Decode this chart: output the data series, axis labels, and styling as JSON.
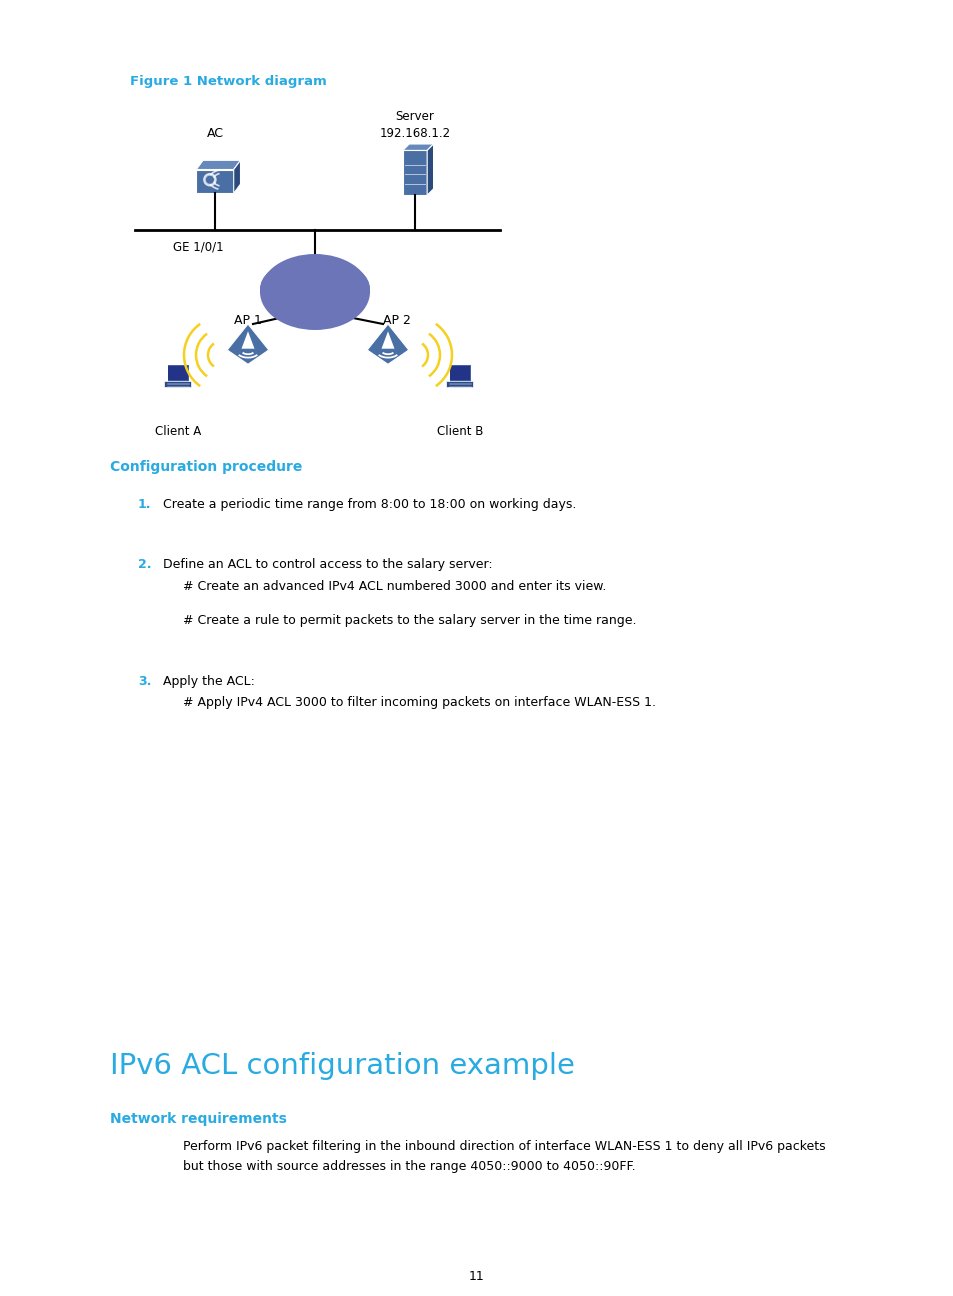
{
  "background_color": "#ffffff",
  "figure_title": "Figure 1 Network diagram",
  "figure_title_color": "#29ABE2",
  "config_title": "Configuration procedure",
  "config_title_color": "#29ABE2",
  "ipv6_title": "IPv6 ACL configuration example",
  "ipv6_title_color": "#29ABE2",
  "network_req_title": "Network requirements",
  "network_req_title_color": "#29ABE2",
  "step1_num": "1.",
  "step1_num_color": "#29ABE2",
  "step1_text": "Create a periodic time range from 8:00 to 18:00 on working days.",
  "step2_num": "2.",
  "step2_num_color": "#29ABE2",
  "step2_text1": "Define an ACL to control access to the salary server:",
  "step2_text2": "# Create an advanced IPv4 ACL numbered 3000 and enter its view.",
  "step2_text3": "# Create a rule to permit packets to the salary server in the time range.",
  "step3_num": "3.",
  "step3_num_color": "#29ABE2",
  "step3_text1": "Apply the ACL:",
  "step3_text2": "# Apply IPv4 ACL 3000 to filter incoming packets on interface WLAN-ESS 1.",
  "network_req_text1": "Perform IPv6 packet filtering in the inbound direction of interface WLAN-ESS 1 to deny all IPv6 packets",
  "network_req_text2": "but those with source addresses in the range 4050::9000 to 4050::90FF.",
  "page_number": "11",
  "ac_label": "AC",
  "ge_label": "GE 1/0/1",
  "server_label": "Server\n192.168.1.2",
  "ap1_label": "AP 1",
  "ap2_label": "AP 2",
  "client_a_label": "Client A",
  "client_b_label": "Client B",
  "device_color": "#4A6FA5",
  "device_light": "#6688BB",
  "device_dark": "#2C4A7C",
  "cloud_color": "#6B75B8",
  "wifi_color": "#F5D020",
  "text_color": "#000000",
  "font_size_body": 9.0,
  "font_size_figure_title": 9.5,
  "font_size_config_title": 10.0,
  "font_size_ipv6_title": 21.0,
  "font_size_network_req": 10.0,
  "font_size_step_num": 9.0
}
